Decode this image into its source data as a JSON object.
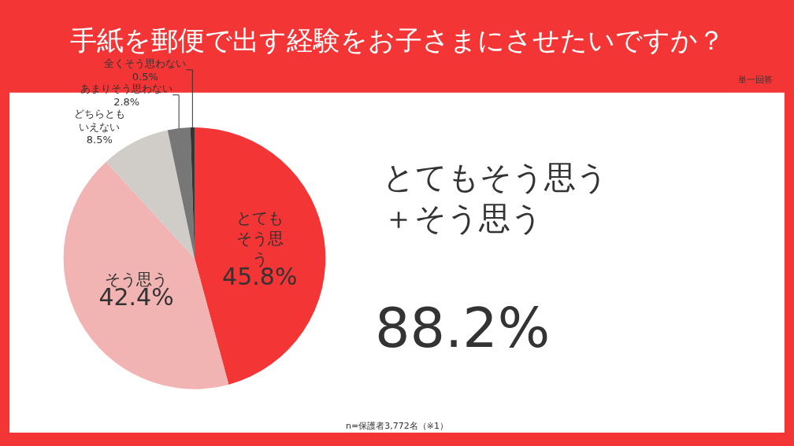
{
  "chart_data": {
    "type": "pie",
    "title": "手紙を郵便で出す経験をお子さまにさせたいですか？",
    "categories": [
      "とてもそう思う",
      "そう思う",
      "どちらともいえない",
      "あまりそう思わない",
      "全くそう思わない"
    ],
    "values": [
      45.8,
      42.4,
      8.5,
      2.8,
      0.5
    ],
    "value_labels": [
      "45.8%",
      "42.4%",
      "8.5%",
      "2.8%",
      "0.5%"
    ],
    "colors": [
      "#f43535",
      "#f2b3b3",
      "#d0ccc8",
      "#777777",
      "#333333"
    ],
    "annotations": [
      "単一回答",
      "とてもそう思う＋そう思う",
      "88.2%",
      "n=保護者3,772名（※1）"
    ],
    "legend": false
  }
}
